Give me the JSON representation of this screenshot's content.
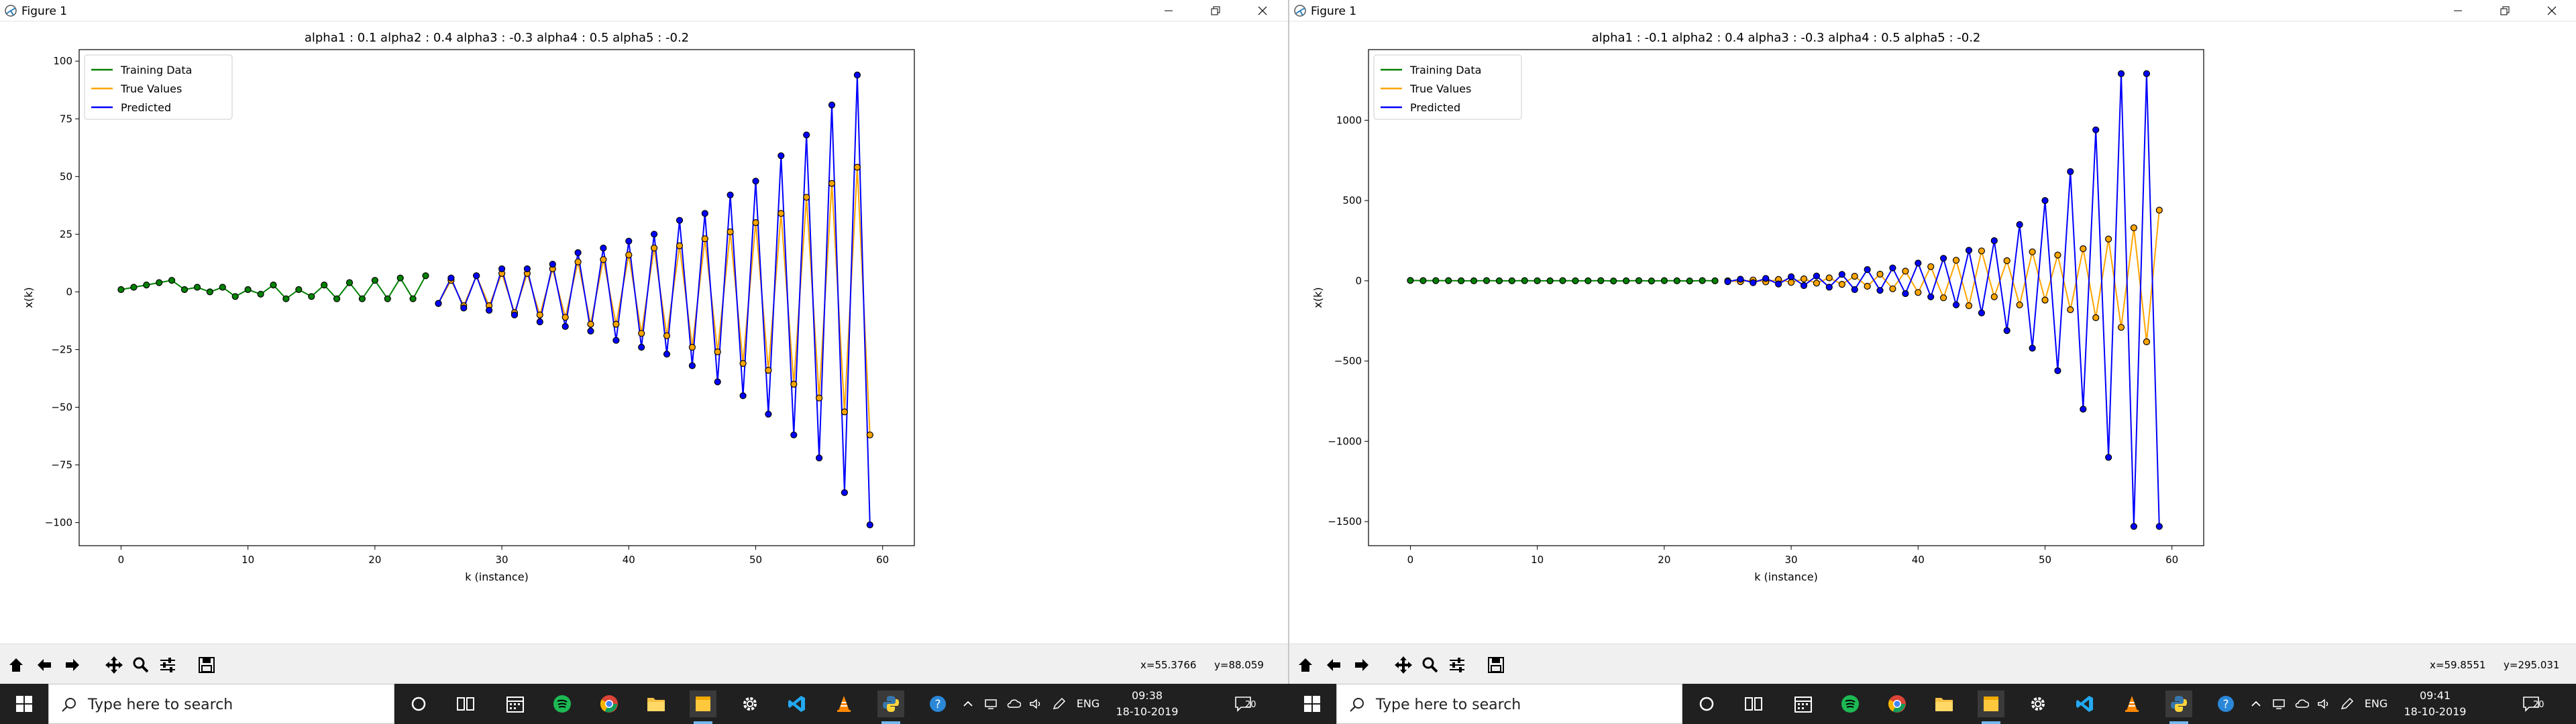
{
  "windows": [
    {
      "title": "Figure 1",
      "status_x": "x=55.3766",
      "status_y": "y=88.059",
      "chart_data": {
        "type": "line",
        "title": "alpha1 : 0.1 alpha2 : 0.4 alpha3 : -0.3 alpha4 : 0.5 alpha5 : -0.2",
        "xlabel": "k (instance)",
        "ylabel": "x(k)",
        "xlim": [
          -3.3,
          62.5
        ],
        "ylim": [
          -110,
          105
        ],
        "xticks": [
          0,
          10,
          20,
          30,
          40,
          50,
          60
        ],
        "xtick_labels": [
          "0",
          "10",
          "20",
          "30",
          "40",
          "50",
          "60"
        ],
        "yticks": [
          100,
          75,
          50,
          25,
          0,
          -25,
          -50,
          -75,
          -100
        ],
        "ytick_labels": [
          "100",
          "75",
          "50",
          "25",
          "0",
          "−25",
          "−50",
          "−75",
          "−100"
        ],
        "legend": "top-left",
        "grid": false,
        "series": [
          {
            "name": "Training Data",
            "color": "#008000",
            "marker": "#008000",
            "x": [
              0,
              1,
              2,
              3,
              4,
              5,
              6,
              7,
              8,
              9,
              10,
              11,
              12,
              13,
              14,
              15,
              16,
              17,
              18,
              19,
              20,
              21,
              22,
              23,
              24
            ],
            "values": [
              1,
              2,
              3,
              4,
              5,
              1,
              2,
              0,
              2,
              -2,
              1,
              -1,
              3,
              -3,
              1,
              -2,
              3,
              -3,
              4,
              -3,
              5,
              -3,
              6,
              -3,
              7
            ]
          },
          {
            "name": "True Values",
            "color": "#ffa500",
            "marker": "#ffa500",
            "x": [
              25,
              26,
              27,
              28,
              29,
              30,
              31,
              32,
              33,
              34,
              35,
              36,
              37,
              38,
              39,
              40,
              41,
              42,
              43,
              44,
              45,
              46,
              47,
              48,
              49,
              50,
              51,
              52,
              53,
              54,
              55,
              56,
              57,
              58,
              59
            ],
            "values": [
              -5,
              5,
              -6,
              7,
              -6,
              8,
              -9,
              8,
              -10,
              10,
              -11,
              13,
              -14,
              14,
              -14,
              16,
              -18,
              19,
              -19,
              20,
              -24,
              23,
              -26,
              26,
              -31,
              30,
              -34,
              34,
              -40,
              41,
              -46,
              47,
              -52,
              54,
              -62
            ]
          },
          {
            "name": "Predicted",
            "color": "#0000ff",
            "marker": "#0000ff",
            "x": [
              25,
              26,
              27,
              28,
              29,
              30,
              31,
              32,
              33,
              34,
              35,
              36,
              37,
              38,
              39,
              40,
              41,
              42,
              43,
              44,
              45,
              46,
              47,
              48,
              49,
              50,
              51,
              52,
              53,
              54,
              55,
              56,
              57,
              58,
              59
            ],
            "values": [
              -5,
              6,
              -7,
              7,
              -8,
              10,
              -10,
              10,
              -13,
              12,
              -15,
              17,
              -17,
              19,
              -21,
              22,
              -24,
              25,
              -27,
              31,
              -32,
              34,
              -39,
              42,
              -45,
              48,
              -53,
              59,
              -62,
              68,
              -72,
              81,
              -87,
              94,
              -101
            ]
          }
        ]
      }
    },
    {
      "title": "Figure 1",
      "status_x": "x=59.8551",
      "status_y": "y=295.031",
      "chart_data": {
        "type": "line",
        "title": "alpha1 : -0.1 alpha2 : 0.4 alpha3 : -0.3 alpha4 : 0.5 alpha5 : -0.2",
        "xlabel": "k (instance)",
        "ylabel": "x(k)",
        "xlim": [
          -3.3,
          62.5
        ],
        "ylim": [
          -1650,
          1440
        ],
        "xticks": [
          0,
          10,
          20,
          30,
          40,
          50,
          60
        ],
        "xtick_labels": [
          "0",
          "10",
          "20",
          "30",
          "40",
          "50",
          "60"
        ],
        "yticks": [
          1000,
          500,
          0,
          -500,
          -1000,
          -1500
        ],
        "ytick_labels": [
          "1000",
          "500",
          "0",
          "−500",
          "−1000",
          "−1500"
        ],
        "legend": "top-left",
        "grid": false,
        "series": [
          {
            "name": "Training Data",
            "color": "#008000",
            "marker": "#008000",
            "x": [
              0,
              1,
              2,
              3,
              4,
              5,
              6,
              7,
              8,
              9,
              10,
              11,
              12,
              13,
              14,
              15,
              16,
              17,
              18,
              19,
              20,
              21,
              22,
              23,
              24
            ],
            "values": [
              2,
              1,
              1,
              1,
              0,
              0,
              1,
              0,
              0,
              1,
              0,
              0,
              1,
              0,
              0,
              1,
              -1,
              0,
              1,
              -1,
              1,
              0,
              -1,
              1,
              0
            ]
          },
          {
            "name": "True Values",
            "color": "#ffa500",
            "marker": "#ffa500",
            "x": [
              25,
              26,
              27,
              28,
              29,
              30,
              31,
              32,
              33,
              34,
              35,
              36,
              37,
              38,
              39,
              40,
              41,
              42,
              43,
              44,
              45,
              46,
              47,
              48,
              49,
              50,
              51,
              52,
              53,
              54,
              55,
              56,
              57,
              58,
              59
            ],
            "values": [
              0,
              -5,
              5,
              -7,
              8,
              -10,
              12,
              -15,
              18,
              -22,
              28,
              -34,
              41,
              -50,
              60,
              -73,
              88,
              -106,
              128,
              -155,
              186,
              -100,
              125,
              -150,
              180,
              -120,
              160,
              -180,
              200,
              -230,
              260,
              -290,
              330,
              -380,
              440
            ]
          },
          {
            "name": "Predicted",
            "color": "#0000ff",
            "marker": "#0000ff",
            "x": [
              25,
              26,
              27,
              28,
              29,
              30,
              31,
              32,
              33,
              34,
              35,
              36,
              37,
              38,
              39,
              40,
              41,
              42,
              43,
              44,
              45,
              46,
              47,
              48,
              49,
              50,
              51,
              52,
              53,
              54,
              55,
              56,
              57,
              58,
              59
            ],
            "values": [
              -5,
              10,
              -12,
              15,
              -20,
              25,
              -30,
              30,
              -40,
              40,
              -55,
              70,
              -60,
              80,
              -80,
              110,
              -100,
              140,
              -150,
              190,
              -200,
              250,
              -310,
              350,
              -420,
              500,
              -560,
              680,
              -800,
              940,
              -1100,
              1290,
              -1530,
              1290,
              -1530
            ]
          }
        ]
      }
    }
  ],
  "taskbars": [
    {
      "search_placeholder": "Type here to search",
      "language": "ENG",
      "time": "09:38",
      "date": "18-10-2019",
      "notif_count": "20"
    },
    {
      "search_placeholder": "Type here to search",
      "language": "ENG",
      "time": "09:41",
      "date": "18-10-2019",
      "notif_count": "20"
    }
  ]
}
